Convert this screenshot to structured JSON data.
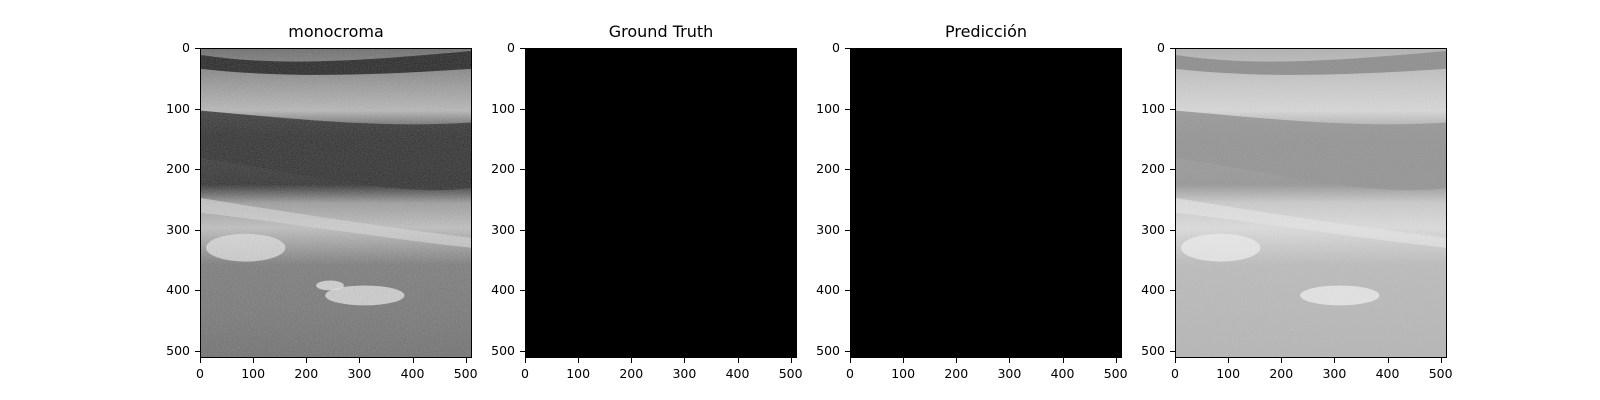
{
  "figure": {
    "panels": [
      {
        "title": "monocroma",
        "kind": "ultrasound",
        "image": "grayscale-ultrasound"
      },
      {
        "title": "Ground Truth",
        "kind": "mask",
        "image": "black-mask"
      },
      {
        "title": "Predicción",
        "kind": "mask",
        "image": "black-mask"
      },
      {
        "title": "",
        "kind": "ultrasound-faded",
        "image": "faded-grayscale-ultrasound"
      }
    ],
    "x_ticks": [
      "0",
      "100",
      "200",
      "300",
      "400",
      "500"
    ],
    "y_ticks": [
      "0",
      "100",
      "200",
      "300",
      "400",
      "500"
    ],
    "x_tick_values": [
      0,
      100,
      200,
      300,
      400,
      500
    ],
    "y_tick_values": [
      0,
      100,
      200,
      300,
      400,
      500
    ],
    "extent": [
      0,
      512
    ]
  }
}
